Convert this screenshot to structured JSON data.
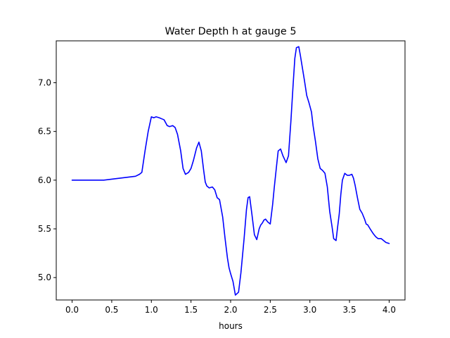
{
  "chart_data": {
    "type": "line",
    "title": "Water Depth h at gauge 5",
    "xlabel": "hours",
    "ylabel": "",
    "xlim": [
      -0.2,
      4.2
    ],
    "ylim": [
      4.77,
      7.43
    ],
    "xticks": [
      0.0,
      0.5,
      1.0,
      1.5,
      2.0,
      2.5,
      3.0,
      3.5,
      4.0
    ],
    "xtick_labels": [
      "0.0",
      "0.5",
      "1.0",
      "1.5",
      "2.0",
      "2.5",
      "3.0",
      "3.5",
      "4.0"
    ],
    "yticks": [
      5.0,
      5.5,
      6.0,
      6.5,
      7.0
    ],
    "ytick_labels": [
      "5.0",
      "5.5",
      "6.0",
      "6.5",
      "7.0"
    ],
    "grid": false,
    "legend": "none",
    "series": [
      {
        "color": "#0000ff",
        "x": [
          0.0,
          0.2,
          0.4,
          0.5,
          0.6,
          0.7,
          0.8,
          0.85,
          0.88,
          0.92,
          0.96,
          1.0,
          1.03,
          1.06,
          1.1,
          1.13,
          1.16,
          1.2,
          1.23,
          1.27,
          1.3,
          1.33,
          1.37,
          1.4,
          1.43,
          1.47,
          1.5,
          1.53,
          1.57,
          1.6,
          1.63,
          1.66,
          1.68,
          1.7,
          1.73,
          1.77,
          1.8,
          1.83,
          1.86,
          1.9,
          1.93,
          1.96,
          1.98,
          2.0,
          2.03,
          2.06,
          2.1,
          2.13,
          2.17,
          2.2,
          2.22,
          2.24,
          2.27,
          2.3,
          2.33,
          2.36,
          2.38,
          2.4,
          2.42,
          2.44,
          2.47,
          2.5,
          2.53,
          2.55,
          2.58,
          2.6,
          2.63,
          2.66,
          2.7,
          2.73,
          2.76,
          2.79,
          2.81,
          2.83,
          2.86,
          2.88,
          2.9,
          2.93,
          2.96,
          2.99,
          3.02,
          3.04,
          3.07,
          3.1,
          3.13,
          3.16,
          3.19,
          3.22,
          3.25,
          3.28,
          3.3,
          3.33,
          3.35,
          3.37,
          3.39,
          3.41,
          3.44,
          3.47,
          3.5,
          3.53,
          3.55,
          3.57,
          3.6,
          3.63,
          3.66,
          3.69,
          3.71,
          3.73,
          3.76,
          3.8,
          3.83,
          3.86,
          3.9,
          3.93,
          3.96,
          4.0
        ],
        "y": [
          6.0,
          6.0,
          6.0,
          6.01,
          6.02,
          6.03,
          6.04,
          6.06,
          6.08,
          6.3,
          6.5,
          6.65,
          6.64,
          6.65,
          6.64,
          6.63,
          6.62,
          6.56,
          6.55,
          6.56,
          6.54,
          6.47,
          6.3,
          6.12,
          6.06,
          6.08,
          6.12,
          6.2,
          6.33,
          6.39,
          6.3,
          6.1,
          5.98,
          5.94,
          5.92,
          5.93,
          5.9,
          5.82,
          5.8,
          5.62,
          5.4,
          5.2,
          5.1,
          5.04,
          4.96,
          4.82,
          4.85,
          5.05,
          5.4,
          5.7,
          5.82,
          5.83,
          5.64,
          5.44,
          5.39,
          5.5,
          5.54,
          5.56,
          5.59,
          5.6,
          5.57,
          5.55,
          5.75,
          5.92,
          6.15,
          6.3,
          6.32,
          6.25,
          6.18,
          6.25,
          6.6,
          7.0,
          7.25,
          7.36,
          7.37,
          7.28,
          7.18,
          7.03,
          6.87,
          6.79,
          6.7,
          6.56,
          6.4,
          6.22,
          6.12,
          6.1,
          6.07,
          5.93,
          5.68,
          5.52,
          5.4,
          5.38,
          5.52,
          5.65,
          5.85,
          6.0,
          6.07,
          6.05,
          6.05,
          6.06,
          6.02,
          5.95,
          5.82,
          5.7,
          5.66,
          5.6,
          5.55,
          5.54,
          5.5,
          5.45,
          5.42,
          5.4,
          5.4,
          5.38,
          5.36,
          5.35
        ]
      }
    ]
  }
}
